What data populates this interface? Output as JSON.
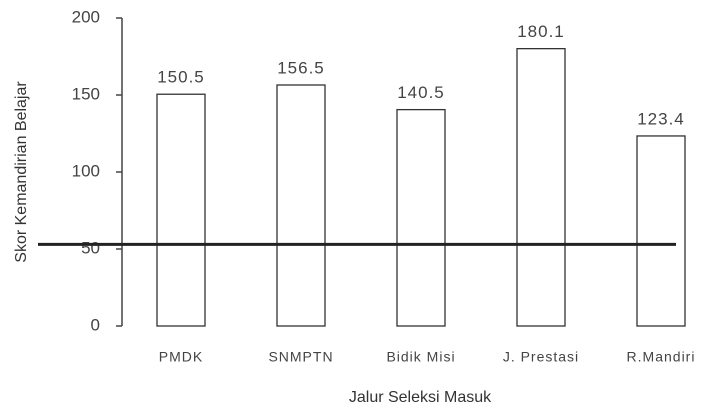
{
  "chart_data": {
    "type": "bar",
    "categories": [
      "PMDK",
      "SNMPTN",
      "Bidik Misi",
      "J. Prestasi",
      "R.Mandiri"
    ],
    "values": [
      150.5,
      156.5,
      140.5,
      180.1,
      123.4
    ],
    "color": "#ffffff",
    "edge_color": "#333333",
    "xlabel": "Jalur Seleksi Masuk",
    "ylabel": "Skor Kemandirian Belajar",
    "ylim": [
      0,
      200
    ],
    "yticks": [
      0,
      50,
      100,
      150,
      200
    ],
    "hline": 53,
    "hline_color": "#222222",
    "grid": false
  }
}
